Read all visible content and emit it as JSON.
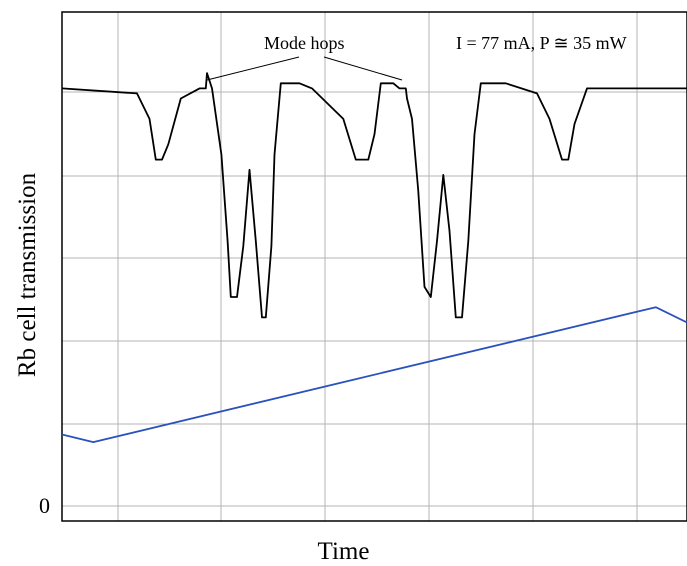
{
  "chart_data": {
    "type": "line",
    "ylabel": "Rb cell transmission",
    "xlabel": "Time",
    "y_tick_labels": [
      "0"
    ],
    "annotations": {
      "mode_hops": "Mode hops",
      "conditions": "I = 77 mA, P ≅ 35 mW"
    },
    "grid": true,
    "xlim": [
      0,
      100
    ],
    "ylim": [
      0,
      100
    ],
    "series": [
      {
        "color": "#000000",
        "x": [
          0,
          12,
          14,
          15,
          16,
          17,
          19,
          22,
          23,
          23.2,
          24,
          25.5,
          26.5,
          27,
          28,
          29,
          30,
          31,
          32,
          32.6,
          33.5,
          34,
          35,
          38,
          40,
          45,
          47,
          49,
          50,
          51,
          53,
          54,
          55,
          55.2,
          56,
          57,
          58,
          59,
          60,
          61,
          62,
          63,
          64,
          65,
          66,
          67,
          71,
          76,
          78,
          80,
          81,
          82,
          84,
          88,
          100
        ],
        "y": [
          85,
          84,
          79,
          71,
          71,
          74,
          83,
          85,
          85,
          88,
          85,
          72,
          55,
          44,
          44,
          54,
          69,
          55,
          40,
          40,
          54,
          72,
          86,
          86,
          85,
          79,
          71,
          71,
          76,
          86,
          86,
          85,
          85,
          83,
          79,
          65,
          46,
          44,
          55,
          68,
          57,
          40,
          40,
          55,
          76,
          86,
          86,
          84,
          79,
          71,
          71,
          78,
          85,
          85,
          85
        ]
      },
      {
        "color": "#2a52be",
        "x": [
          0,
          5,
          95,
          100
        ],
        "y": [
          17,
          15.5,
          42,
          39
        ]
      }
    ]
  }
}
